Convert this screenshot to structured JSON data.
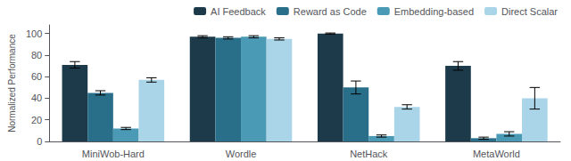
{
  "chart_data": {
    "type": "bar",
    "categories": [
      "MiniWob-Hard",
      "Wordle",
      "NetHack",
      "MetaWorld"
    ],
    "series": [
      {
        "name": "AI Feedback",
        "color": "#1c3a4a",
        "values": [
          71,
          97,
          100,
          70
        ],
        "errors": [
          3,
          1,
          0.5,
          4
        ]
      },
      {
        "name": "Reward as Code",
        "color": "#2a6f8a",
        "values": [
          45,
          96,
          50,
          3
        ],
        "errors": [
          2,
          1,
          6,
          1
        ]
      },
      {
        "name": "Embedding-based",
        "color": "#4a9ab5",
        "values": [
          12,
          97,
          5,
          7
        ],
        "errors": [
          1,
          1,
          1,
          2
        ]
      },
      {
        "name": "Direct Scalar",
        "color": "#aad4e8",
        "values": [
          57,
          95,
          32,
          40
        ],
        "errors": [
          2,
          1,
          2,
          10
        ]
      }
    ],
    "ylabel": "Normalized Performance",
    "ylim": [
      0,
      108
    ],
    "yticks": [
      0,
      20,
      40,
      60,
      80,
      100
    ],
    "grid": false,
    "legend": "upper right"
  }
}
